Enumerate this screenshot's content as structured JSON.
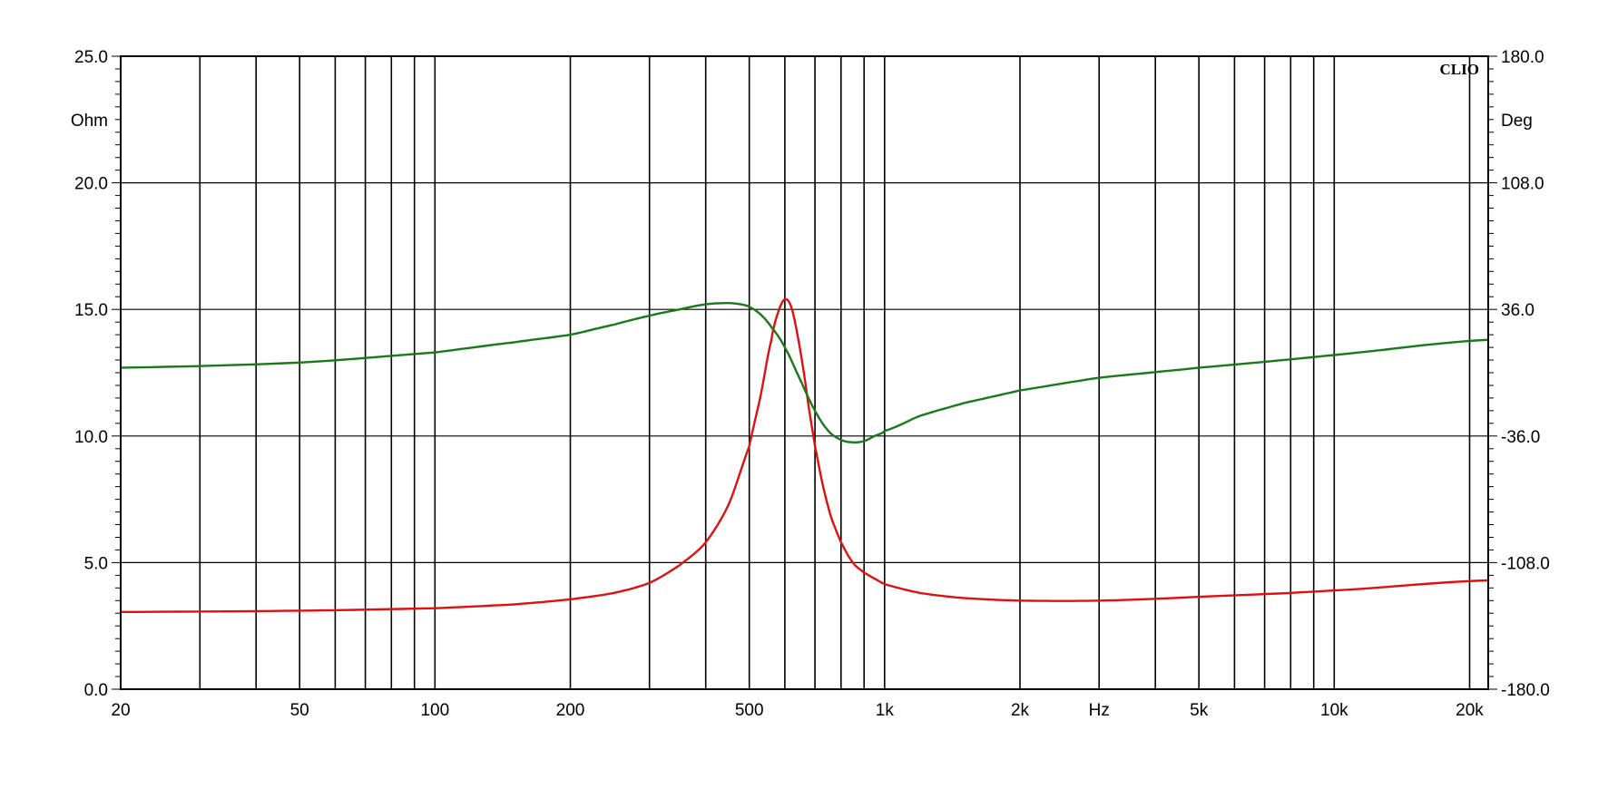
{
  "chart_data": {
    "type": "line",
    "brand": "CLIO",
    "x_scale": "log",
    "xlim": [
      20,
      22000
    ],
    "x_ticks": [
      {
        "value": 20,
        "label": "20"
      },
      {
        "value": 50,
        "label": "50"
      },
      {
        "value": 100,
        "label": "100"
      },
      {
        "value": 200,
        "label": "200"
      },
      {
        "value": 500,
        "label": "500"
      },
      {
        "value": 1000,
        "label": "1k"
      },
      {
        "value": 2000,
        "label": "2k"
      },
      {
        "value": 5000,
        "label": "5k"
      },
      {
        "value": 10000,
        "label": "10k"
      },
      {
        "value": 20000,
        "label": "20k"
      }
    ],
    "x_unit_label": "Hz",
    "x_unit_position_value": 3000,
    "x_gridlines": [
      20,
      30,
      40,
      50,
      60,
      70,
      80,
      90,
      100,
      200,
      300,
      400,
      500,
      600,
      700,
      800,
      900,
      1000,
      2000,
      3000,
      4000,
      5000,
      6000,
      7000,
      8000,
      9000,
      10000,
      20000
    ],
    "y_left": {
      "unit": "Ohm",
      "lim": [
        0,
        25
      ],
      "ticks": [
        {
          "value": 0,
          "label": "0.0"
        },
        {
          "value": 5,
          "label": "5.0"
        },
        {
          "value": 10,
          "label": "10.0"
        },
        {
          "value": 15,
          "label": "15.0"
        },
        {
          "value": 20,
          "label": "20.0"
        },
        {
          "value": 25,
          "label": "25.0"
        }
      ]
    },
    "y_right": {
      "unit": "Deg",
      "lim": [
        -180,
        180
      ],
      "ticks": [
        {
          "value": -180,
          "label": "-180.0"
        },
        {
          "value": -108,
          "label": "-108.0"
        },
        {
          "value": -36,
          "label": "-36.0"
        },
        {
          "value": 36,
          "label": "36.0"
        },
        {
          "value": 108,
          "label": "108.0"
        },
        {
          "value": 180,
          "label": "180.0"
        }
      ]
    },
    "grid": true,
    "series": [
      {
        "axis": "left",
        "color": "#e01010",
        "x": [
          20,
          50,
          100,
          150,
          200,
          250,
          300,
          350,
          400,
          450,
          500,
          530,
          560,
          580,
          600,
          620,
          640,
          660,
          680,
          700,
          730,
          760,
          800,
          850,
          900,
          1000,
          1200,
          1500,
          2000,
          3000,
          5000,
          10000,
          22000
        ],
        "y": [
          3.05,
          3.1,
          3.2,
          3.35,
          3.55,
          3.8,
          4.2,
          4.9,
          5.8,
          7.3,
          9.6,
          11.6,
          13.8,
          14.9,
          15.4,
          15.1,
          14.0,
          12.6,
          11.0,
          9.6,
          8.0,
          6.8,
          5.8,
          5.0,
          4.6,
          4.15,
          3.8,
          3.6,
          3.5,
          3.5,
          3.65,
          3.9,
          4.3
        ]
      },
      {
        "axis": "right",
        "color": "#1a7a1a",
        "x": [
          20,
          50,
          100,
          150,
          200,
          250,
          300,
          350,
          400,
          450,
          480,
          500,
          530,
          560,
          600,
          650,
          700,
          750,
          800,
          850,
          900,
          950,
          1000,
          1200,
          1500,
          2000,
          3000,
          5000,
          10000,
          22000
        ],
        "y": [
          12.7,
          12.9,
          13.3,
          13.7,
          14.0,
          14.4,
          14.75,
          15.0,
          15.2,
          15.25,
          15.2,
          15.1,
          14.8,
          14.3,
          13.5,
          12.2,
          11.0,
          10.2,
          9.85,
          9.75,
          9.8,
          10.0,
          10.2,
          10.8,
          11.3,
          11.8,
          12.3,
          12.7,
          13.2,
          13.8
        ]
      }
    ]
  }
}
